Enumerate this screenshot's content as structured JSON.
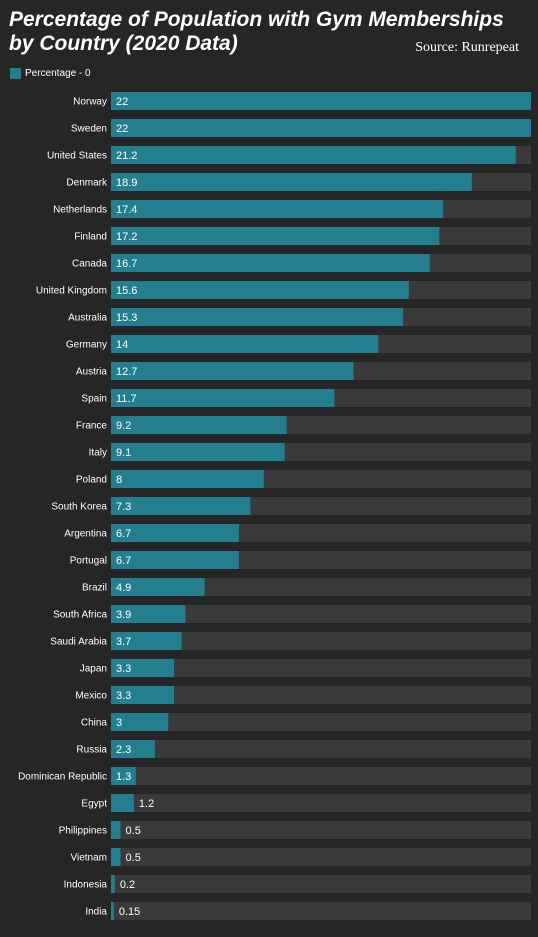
{
  "chart_data": {
    "type": "bar",
    "orientation": "horizontal",
    "title": "Percentage of Population with Gym Memberships by Country (2020 Data)",
    "source": "Source: Runrepeat",
    "legend": {
      "label": "Percentage - 0",
      "placement": "top-left"
    },
    "xlim": [
      0,
      22
    ],
    "categories": [
      "Norway",
      "Sweden",
      "United States",
      "Denmark",
      "Netherlands",
      "Finland",
      "Canada",
      "United Kingdom",
      "Australia",
      "Germany",
      "Austria",
      "Spain",
      "France",
      "Italy",
      "Poland",
      "South Korea",
      "Argentina",
      "Portugal",
      "Brazil",
      "South Africa",
      "Saudi Arabia",
      "Japan",
      "Mexico",
      "China",
      "Russia",
      "Dominican Republic",
      "Egypt",
      "Philippines",
      "Vietnam",
      "Indonesia",
      "India"
    ],
    "values": [
      22,
      22,
      21.2,
      18.9,
      17.4,
      17.2,
      16.7,
      15.6,
      15.3,
      14,
      12.7,
      11.7,
      9.2,
      9.1,
      8,
      7.3,
      6.7,
      6.7,
      4.9,
      3.9,
      3.7,
      3.3,
      3.3,
      3,
      2.3,
      1.3,
      1.2,
      0.5,
      0.5,
      0.2,
      0.15
    ],
    "value_labels": [
      "22",
      "22",
      "21.2",
      "18.9",
      "17.4",
      "17.2",
      "16.7",
      "15.6",
      "15.3",
      "14",
      "12.7",
      "11.7",
      "9.2",
      "9.1",
      "8",
      "7.3",
      "6.7",
      "6.7",
      "4.9",
      "3.9",
      "3.7",
      "3.3",
      "3.3",
      "3",
      "2.3",
      "1.3",
      "1.2",
      "0.5",
      "0.5",
      "0.2",
      "0.15"
    ],
    "colors": {
      "bar": "#237f8f",
      "track": "#3a3a3a",
      "background": "#262626",
      "text": "#ffffff"
    }
  }
}
